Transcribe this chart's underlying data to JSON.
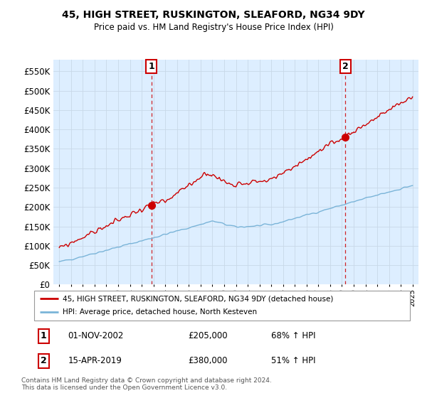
{
  "title": "45, HIGH STREET, RUSKINGTON, SLEAFORD, NG34 9DY",
  "subtitle": "Price paid vs. HM Land Registry's House Price Index (HPI)",
  "ytick_values": [
    0,
    50000,
    100000,
    150000,
    200000,
    250000,
    300000,
    350000,
    400000,
    450000,
    500000,
    550000
  ],
  "ylim": [
    0,
    580000
  ],
  "xlim_left": 1994.5,
  "xlim_right": 2025.5,
  "hpi_color": "#7ab4d8",
  "price_color": "#cc0000",
  "plot_bg_color": "#ddeeff",
  "marker1_x": 2002.83,
  "marker1_y": 205000,
  "marker2_x": 2019.29,
  "marker2_y": 380000,
  "legend_line1": "45, HIGH STREET, RUSKINGTON, SLEAFORD, NG34 9DY (detached house)",
  "legend_line2": "HPI: Average price, detached house, North Kesteven",
  "footnote": "Contains HM Land Registry data © Crown copyright and database right 2024.\nThis data is licensed under the Open Government Licence v3.0.",
  "grid_color": "#c8d8e8",
  "hpi_seed": 42,
  "price_seed": 99
}
